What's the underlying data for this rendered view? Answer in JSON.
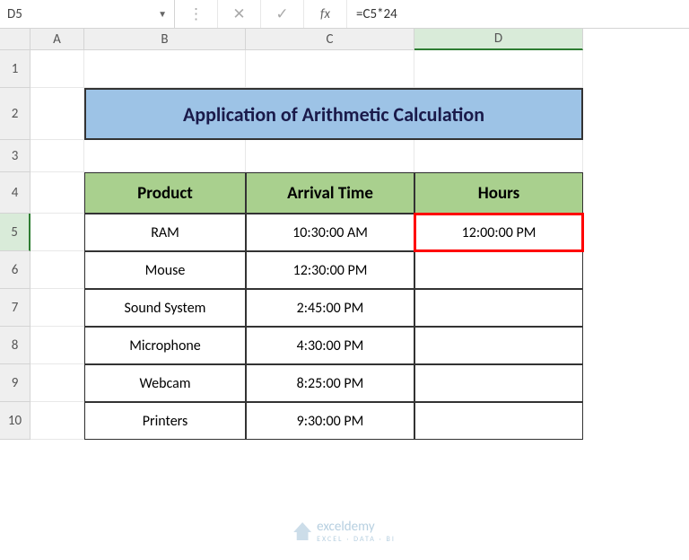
{
  "nameBox": "D5",
  "formula": "=C5*24",
  "columns": [
    "A",
    "B",
    "C",
    "D"
  ],
  "rows": [
    "1",
    "2",
    "3",
    "4",
    "5",
    "6",
    "7",
    "8",
    "9",
    "10"
  ],
  "activeCol": "D",
  "activeRow": "5",
  "title": "Application of Arithmetic Calculation",
  "headers": {
    "product": "Product",
    "arrival": "Arrival Time",
    "hours": "Hours"
  },
  "data": [
    {
      "product": "RAM",
      "arrival": "10:30:00 AM",
      "hours": "12:00:00 PM"
    },
    {
      "product": "Mouse",
      "arrival": "12:30:00 PM",
      "hours": ""
    },
    {
      "product": "Sound System",
      "arrival": "2:45:00 PM",
      "hours": ""
    },
    {
      "product": "Microphone",
      "arrival": "4:30:00 PM",
      "hours": ""
    },
    {
      "product": "Webcam",
      "arrival": "8:25:00 PM",
      "hours": ""
    },
    {
      "product": "Printers",
      "arrival": "9:30:00 PM",
      "hours": ""
    }
  ],
  "watermark": {
    "name": "exceldemy",
    "tag": "EXCEL · DATA · BI"
  },
  "colors": {
    "titleBg": "#9dc3e6",
    "headerBg": "#a9d08e",
    "selectBorder": "#ff0000"
  }
}
